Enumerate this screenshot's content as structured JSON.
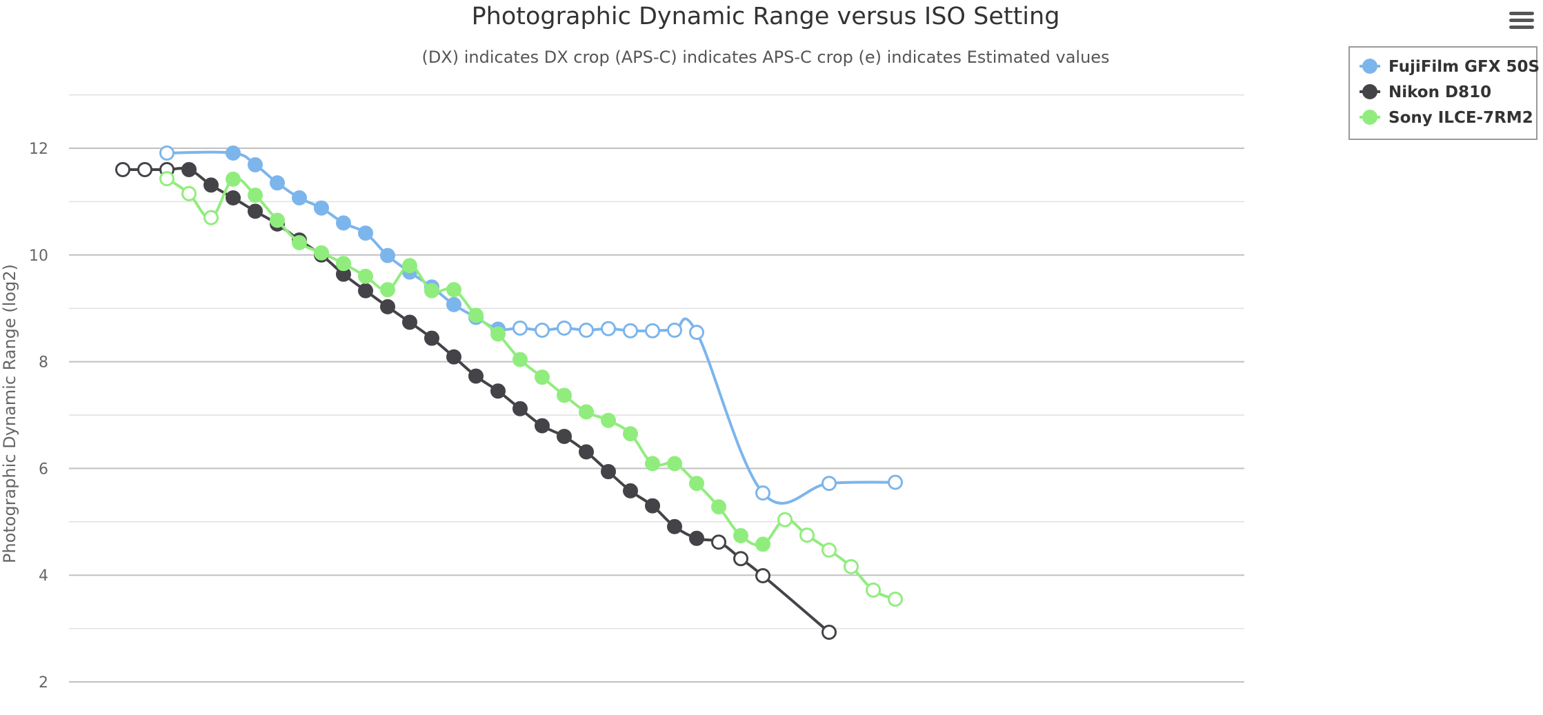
{
  "chart_data": {
    "type": "line",
    "title": "Photographic Dynamic Range versus ISO Setting",
    "subtitle": "(DX) indicates DX crop (APS-C) indicates APS-C crop (e) indicates Estimated values",
    "xlabel": "",
    "ylabel": "Photographic Dynamic Range (log2)",
    "ylim": [
      2,
      13
    ],
    "yticks": [
      2,
      4,
      6,
      8,
      10,
      12
    ],
    "grid": true,
    "legend_position": "top-right",
    "x_scale": "ISO steps in 1/3 stop, index 0 = ISO 32",
    "x_range": [
      0,
      53
    ],
    "series": [
      {
        "name": "FujiFilm GFX 50S",
        "color": "#7cb5ec",
        "points": [
          {
            "x": 2,
            "y": 11.91,
            "filled": false
          },
          {
            "x": 5,
            "y": 11.91,
            "filled": true
          },
          {
            "x": 6,
            "y": 11.69,
            "filled": true
          },
          {
            "x": 7,
            "y": 11.35,
            "filled": true
          },
          {
            "x": 8,
            "y": 11.07,
            "filled": true
          },
          {
            "x": 9,
            "y": 10.88,
            "filled": true
          },
          {
            "x": 10,
            "y": 10.6,
            "filled": true
          },
          {
            "x": 11,
            "y": 10.41,
            "filled": true
          },
          {
            "x": 12,
            "y": 9.99,
            "filled": true
          },
          {
            "x": 13,
            "y": 9.68,
            "filled": true
          },
          {
            "x": 14,
            "y": 9.4,
            "filled": true
          },
          {
            "x": 15,
            "y": 9.07,
            "filled": true
          },
          {
            "x": 16,
            "y": 8.83,
            "filled": true
          },
          {
            "x": 17,
            "y": 8.61,
            "filled": true
          },
          {
            "x": 18,
            "y": 8.63,
            "filled": false
          },
          {
            "x": 19,
            "y": 8.59,
            "filled": false
          },
          {
            "x": 20,
            "y": 8.63,
            "filled": false
          },
          {
            "x": 21,
            "y": 8.59,
            "filled": false
          },
          {
            "x": 22,
            "y": 8.62,
            "filled": false
          },
          {
            "x": 23,
            "y": 8.58,
            "filled": false
          },
          {
            "x": 24,
            "y": 8.58,
            "filled": false
          },
          {
            "x": 25,
            "y": 8.59,
            "filled": false
          },
          {
            "x": 26,
            "y": 8.55,
            "filled": false
          },
          {
            "x": 29,
            "y": 5.54,
            "filled": false
          },
          {
            "x": 32,
            "y": 5.72,
            "filled": false
          },
          {
            "x": 35,
            "y": 5.74,
            "filled": false
          }
        ]
      },
      {
        "name": "Nikon D810",
        "color": "#434348",
        "points": [
          {
            "x": 0,
            "y": 11.6,
            "filled": false
          },
          {
            "x": 1,
            "y": 11.6,
            "filled": false
          },
          {
            "x": 2,
            "y": 11.6,
            "filled": false
          },
          {
            "x": 3,
            "y": 11.6,
            "filled": true
          },
          {
            "x": 4,
            "y": 11.31,
            "filled": true
          },
          {
            "x": 5,
            "y": 11.07,
            "filled": true
          },
          {
            "x": 6,
            "y": 10.82,
            "filled": true
          },
          {
            "x": 7,
            "y": 10.58,
            "filled": true
          },
          {
            "x": 8,
            "y": 10.28,
            "filled": true
          },
          {
            "x": 9,
            "y": 10.0,
            "filled": true
          },
          {
            "x": 10,
            "y": 9.64,
            "filled": true
          },
          {
            "x": 11,
            "y": 9.33,
            "filled": true
          },
          {
            "x": 12,
            "y": 9.03,
            "filled": true
          },
          {
            "x": 13,
            "y": 8.74,
            "filled": true
          },
          {
            "x": 14,
            "y": 8.44,
            "filled": true
          },
          {
            "x": 15,
            "y": 8.09,
            "filled": true
          },
          {
            "x": 16,
            "y": 7.73,
            "filled": true
          },
          {
            "x": 17,
            "y": 7.45,
            "filled": true
          },
          {
            "x": 18,
            "y": 7.12,
            "filled": true
          },
          {
            "x": 19,
            "y": 6.8,
            "filled": true
          },
          {
            "x": 20,
            "y": 6.6,
            "filled": true
          },
          {
            "x": 21,
            "y": 6.31,
            "filled": true
          },
          {
            "x": 22,
            "y": 5.94,
            "filled": true
          },
          {
            "x": 23,
            "y": 5.58,
            "filled": true
          },
          {
            "x": 24,
            "y": 5.3,
            "filled": true
          },
          {
            "x": 25,
            "y": 4.91,
            "filled": true
          },
          {
            "x": 26,
            "y": 4.69,
            "filled": true
          },
          {
            "x": 27,
            "y": 4.62,
            "filled": false
          },
          {
            "x": 28,
            "y": 4.31,
            "filled": false
          },
          {
            "x": 29,
            "y": 3.99,
            "filled": false
          },
          {
            "x": 32,
            "y": 2.93,
            "filled": false
          }
        ]
      },
      {
        "name": "Sony ILCE-7RM2",
        "color": "#90ed7d",
        "points": [
          {
            "x": 2,
            "y": 11.43,
            "filled": false
          },
          {
            "x": 3,
            "y": 11.15,
            "filled": false
          },
          {
            "x": 4,
            "y": 10.7,
            "filled": false
          },
          {
            "x": 5,
            "y": 11.42,
            "filled": true
          },
          {
            "x": 6,
            "y": 11.12,
            "filled": true
          },
          {
            "x": 7,
            "y": 10.65,
            "filled": true
          },
          {
            "x": 8,
            "y": 10.23,
            "filled": true
          },
          {
            "x": 9,
            "y": 10.04,
            "filled": true
          },
          {
            "x": 10,
            "y": 9.84,
            "filled": true
          },
          {
            "x": 11,
            "y": 9.6,
            "filled": true
          },
          {
            "x": 12,
            "y": 9.35,
            "filled": true
          },
          {
            "x": 13,
            "y": 9.8,
            "filled": true
          },
          {
            "x": 14,
            "y": 9.33,
            "filled": true
          },
          {
            "x": 15,
            "y": 9.35,
            "filled": true
          },
          {
            "x": 16,
            "y": 8.87,
            "filled": true
          },
          {
            "x": 17,
            "y": 8.52,
            "filled": true
          },
          {
            "x": 18,
            "y": 8.04,
            "filled": true
          },
          {
            "x": 19,
            "y": 7.71,
            "filled": true
          },
          {
            "x": 20,
            "y": 7.37,
            "filled": true
          },
          {
            "x": 21,
            "y": 7.06,
            "filled": true
          },
          {
            "x": 22,
            "y": 6.9,
            "filled": true
          },
          {
            "x": 23,
            "y": 6.65,
            "filled": true
          },
          {
            "x": 24,
            "y": 6.09,
            "filled": true
          },
          {
            "x": 25,
            "y": 6.09,
            "filled": true
          },
          {
            "x": 26,
            "y": 5.72,
            "filled": true
          },
          {
            "x": 27,
            "y": 5.28,
            "filled": true
          },
          {
            "x": 28,
            "y": 4.74,
            "filled": true
          },
          {
            "x": 29,
            "y": 4.58,
            "filled": true
          },
          {
            "x": 30,
            "y": 5.04,
            "filled": false
          },
          {
            "x": 31,
            "y": 4.75,
            "filled": false
          },
          {
            "x": 32,
            "y": 4.47,
            "filled": false
          },
          {
            "x": 33,
            "y": 4.16,
            "filled": false
          },
          {
            "x": 34,
            "y": 3.72,
            "filled": false
          },
          {
            "x": 35,
            "y": 3.55,
            "filled": false
          }
        ]
      }
    ]
  },
  "menu": {
    "icon": "hamburger-menu-icon"
  }
}
